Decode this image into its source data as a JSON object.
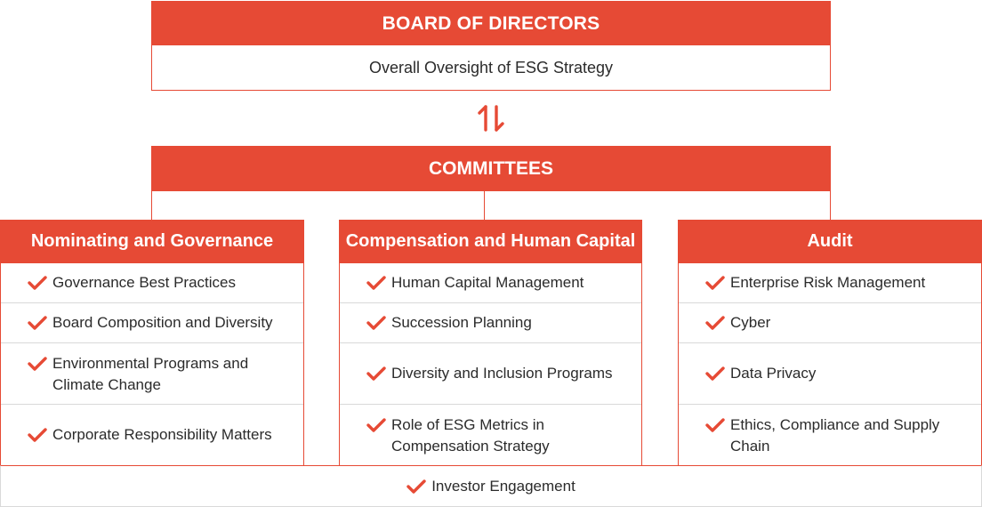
{
  "board": {
    "title": "BOARD OF DIRECTORS",
    "subtitle": "Overall Oversight of ESG Strategy"
  },
  "committees": {
    "title": "COMMITTEES",
    "columns": [
      {
        "title": "Nominating and Governance",
        "items": [
          "Governance Best Practices",
          "Board Composition and Diversity",
          "Environmental Programs and Climate Change",
          "Corporate Responsibility Matters"
        ]
      },
      {
        "title": "Compensation and Human Capital",
        "items": [
          "Human Capital Management",
          "Succession Planning",
          "Diversity and Inclusion Programs",
          "Role of ESG Metrics in Compensation Strategy"
        ]
      },
      {
        "title": "Audit",
        "items": [
          "Enterprise Risk Management",
          "Cyber",
          "Data Privacy",
          "Ethics, Compliance and Supply Chain"
        ]
      }
    ]
  },
  "footer": {
    "label": "Investor Engagement"
  },
  "colors": {
    "accent": "#e64a35",
    "divider": "#d9d9d9",
    "text": "#2b2b2b"
  },
  "icons": {
    "item_marker": "check-icon",
    "connector": "bidirectional-arrows-icon"
  }
}
